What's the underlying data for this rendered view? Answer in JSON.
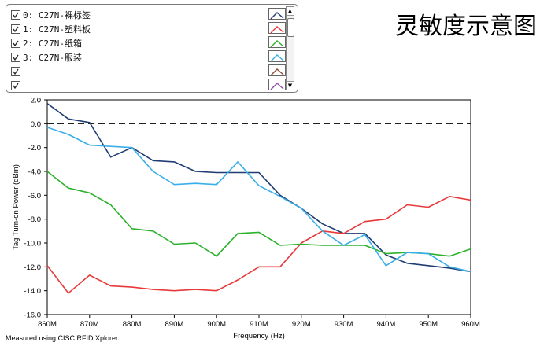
{
  "legend": {
    "items": [
      {
        "label": "0: C27N-裸标签",
        "checked": true,
        "color": "#1f3d73"
      },
      {
        "label": "1: C27N-塑料板",
        "checked": true,
        "color": "#e8393a"
      },
      {
        "label": "2: C27N-纸箱",
        "checked": true,
        "color": "#2db22d"
      },
      {
        "label": "3: C27N-服装",
        "checked": true,
        "color": "#3aaee8"
      },
      {
        "label": "",
        "checked": true,
        "color": "#8b4a3a"
      },
      {
        "label": "",
        "checked": true,
        "color": "#8e4ea8"
      }
    ],
    "scroll_up": "▲",
    "scroll_down": "▼"
  },
  "header": {
    "title": "灵敏度示意图"
  },
  "footnote": "Measured using CISC RFID Xplorer",
  "chart_data": {
    "type": "line",
    "title": "灵敏度示意图",
    "xlabel": "Frequency (Hz)",
    "ylabel": "Tag Turn-on Power (dBm)",
    "xlim": [
      860,
      960
    ],
    "ylim": [
      -16,
      2
    ],
    "x_ticks": [
      860,
      870,
      880,
      890,
      900,
      910,
      920,
      930,
      940,
      950,
      960
    ],
    "x_tick_labels": [
      "860M",
      "870M",
      "880M",
      "890M",
      "900M",
      "910M",
      "920M",
      "930M",
      "940M",
      "950M",
      "960M"
    ],
    "y_ticks": [
      2,
      0,
      -2,
      -4,
      -6,
      -8,
      -10,
      -12,
      -14,
      -16
    ],
    "y_tick_labels": [
      "2.0",
      "0.0",
      "-2.0",
      "-4.0",
      "-6.0",
      "-8.0",
      "-10.0",
      "-12.0",
      "-14.0",
      "-16.0"
    ],
    "reference_line": 0,
    "x": [
      860,
      865,
      870,
      875,
      880,
      885,
      890,
      895,
      900,
      905,
      910,
      915,
      920,
      925,
      930,
      935,
      940,
      945,
      950,
      955,
      960
    ],
    "series": [
      {
        "name": "0: C27N-裸标签",
        "color": "#1f3d73",
        "values": [
          1.7,
          0.4,
          0.1,
          -2.8,
          -2.0,
          -3.1,
          -3.2,
          -4.0,
          -4.1,
          -4.1,
          -4.1,
          -6.0,
          -7.1,
          -8.4,
          -9.2,
          -9.2,
          -11.0,
          -11.7,
          -11.9,
          -12.1,
          -12.4
        ]
      },
      {
        "name": "1: C27N-塑料板",
        "color": "#e8393a",
        "values": [
          -11.9,
          -14.2,
          -12.7,
          -13.6,
          -13.7,
          -13.9,
          -14.0,
          -13.9,
          -14.0,
          -13.1,
          -12.0,
          -12.0,
          -10.0,
          -9.0,
          -9.2,
          -8.2,
          -8.0,
          -6.8,
          -7.0,
          -6.1,
          -6.4
        ]
      },
      {
        "name": "2: C27N-纸箱",
        "color": "#2db22d",
        "values": [
          -4.0,
          -5.4,
          -5.8,
          -6.8,
          -8.8,
          -9.0,
          -10.1,
          -10.0,
          -11.1,
          -9.2,
          -9.1,
          -10.2,
          -10.1,
          -10.2,
          -10.2,
          -10.2,
          -10.9,
          -10.8,
          -10.9,
          -11.1,
          -10.5
        ]
      },
      {
        "name": "3: C27N-服装",
        "color": "#3aaee8",
        "values": [
          -0.3,
          -0.9,
          -1.8,
          -1.9,
          -2.0,
          -4.0,
          -5.1,
          -5.0,
          -5.1,
          -3.2,
          -5.2,
          -6.1,
          -7.1,
          -9.0,
          -10.2,
          -9.3,
          -11.9,
          -10.8,
          -10.9,
          -12.0,
          -12.4
        ]
      }
    ],
    "grid": false,
    "legend_position": "top-left panel"
  }
}
